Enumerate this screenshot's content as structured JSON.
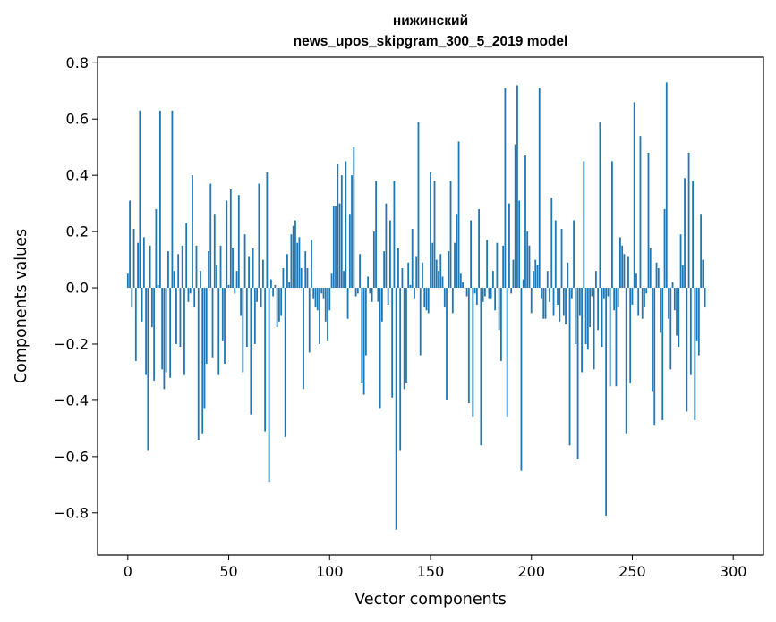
{
  "chart_data": {
    "type": "bar",
    "title": "нижинский",
    "subtitle": "news_upos_skipgram_300_5_2019 model",
    "xlabel": "Vector components",
    "ylabel": "Components values",
    "xlim": [
      -15,
      315
    ],
    "ylim": [
      -0.95,
      0.82
    ],
    "xticks": [
      0,
      50,
      100,
      150,
      200,
      250,
      300
    ],
    "xtick_labels": [
      "0",
      "50",
      "100",
      "150",
      "200",
      "250",
      "300"
    ],
    "yticks": [
      0.8,
      0.6,
      0.4,
      0.2,
      0.0,
      -0.2,
      -0.4,
      -0.6,
      -0.8
    ],
    "ytick_labels": [
      "0.8",
      "0.6",
      "0.4",
      "0.2",
      "0.0",
      "−0.2",
      "−0.4",
      "−0.6",
      "−0.8"
    ],
    "grid": false,
    "legend": "none",
    "bar_color": "#1f77b4",
    "series": [
      {
        "values": [
          0.05,
          0.31,
          -0.07,
          0.21,
          -0.26,
          0.16,
          0.63,
          -0.12,
          0.18,
          -0.31,
          -0.58,
          0.15,
          -0.14,
          -0.33,
          0.28,
          0.01,
          0.63,
          -0.29,
          -0.36,
          -0.3,
          0.13,
          -0.32,
          0.63,
          0.06,
          -0.2,
          0.12,
          -0.21,
          0.15,
          -0.31,
          0.23,
          -0.05,
          -0.02,
          0.4,
          -0.07,
          0.15,
          -0.54,
          0.06,
          -0.52,
          -0.43,
          -0.27,
          0.13,
          0.37,
          -0.25,
          0.26,
          0.08,
          -0.31,
          0.15,
          -0.19,
          -0.27,
          0.31,
          0.01,
          0.35,
          0.14,
          -0.02,
          0.06,
          0.33,
          -0.1,
          -0.3,
          0.19,
          -0.21,
          0.11,
          -0.45,
          0.14,
          -0.2,
          -0.05,
          0.37,
          -0.07,
          0.1,
          -0.51,
          0.41,
          -0.69,
          0.03,
          -0.03,
          0.01,
          -0.14,
          -0.12,
          -0.1,
          0.07,
          -0.53,
          0.12,
          0.02,
          0.19,
          0.22,
          0.24,
          0.16,
          0.18,
          0.07,
          -0.36,
          0.13,
          0.07,
          -0.23,
          0.17,
          -0.04,
          -0.07,
          -0.08,
          -0.2,
          -0.02,
          -0.04,
          -0.12,
          -0.19,
          -0.08,
          0.05,
          0.29,
          0.29,
          0.44,
          0.3,
          0.4,
          0.06,
          0.45,
          -0.11,
          0.26,
          0.4,
          0.5,
          -0.03,
          -0.02,
          0.12,
          -0.34,
          -0.38,
          -0.24,
          0.04,
          -0.02,
          -0.05,
          0.2,
          0.38,
          -0.05,
          -0.43,
          -0.12,
          0.13,
          0.3,
          -0.06,
          0.24,
          -0.39,
          0.38,
          -0.86,
          0.14,
          -0.58,
          0.07,
          -0.36,
          -0.34,
          0.09,
          0.01,
          0.21,
          -0.04,
          0.11,
          0.59,
          -0.24,
          0.09,
          -0.07,
          -0.08,
          -0.09,
          0.41,
          0.16,
          0.38,
          0.1,
          0.06,
          0.12,
          0.04,
          -0.07,
          -0.4,
          0.13,
          0.38,
          -0.09,
          0.16,
          0.26,
          0.52,
          0.05,
          0.02,
          0.0,
          -0.03,
          -0.41,
          0.24,
          -0.46,
          -0.02,
          -0.06,
          0.28,
          -0.56,
          -0.05,
          -0.03,
          0.17,
          -0.04,
          -0.04,
          0.06,
          -0.08,
          0.16,
          -0.15,
          -0.26,
          0.15,
          0.71,
          -0.46,
          0.3,
          -0.02,
          0.1,
          0.51,
          0.72,
          0.31,
          -0.65,
          0.03,
          0.47,
          0.2,
          0.15,
          -0.09,
          0.06,
          0.1,
          0.08,
          0.71,
          -0.04,
          -0.11,
          -0.11,
          0.06,
          -0.05,
          0.32,
          -0.1,
          0.24,
          -0.06,
          -0.12,
          0.21,
          -0.1,
          -0.13,
          0.09,
          -0.56,
          -0.04,
          0.24,
          -0.2,
          -0.61,
          -0.1,
          -0.3,
          0.45,
          -0.2,
          -0.22,
          -0.14,
          -0.03,
          -0.29,
          0.06,
          -0.15,
          0.59,
          -0.21,
          -0.04,
          -0.81,
          -0.03,
          -0.35,
          0.45,
          -0.08,
          -0.35,
          -0.07,
          0.18,
          0.15,
          0.12,
          -0.52,
          0.11,
          -0.34,
          -0.06,
          0.66,
          0.05,
          -0.1,
          0.54,
          -0.11,
          -0.07,
          -0.02,
          0.48,
          0.14,
          -0.37,
          -0.49,
          0.09,
          0.07,
          -0.16,
          -0.47,
          0.28,
          0.73,
          -0.11,
          -0.29,
          0.02,
          -0.08,
          -0.17,
          -0.21,
          0.19,
          0.08,
          0.39,
          -0.44,
          0.48,
          -0.31,
          0.38,
          -0.47,
          -0.19,
          -0.24,
          0.26,
          0.1,
          -0.07
        ]
      }
    ]
  }
}
